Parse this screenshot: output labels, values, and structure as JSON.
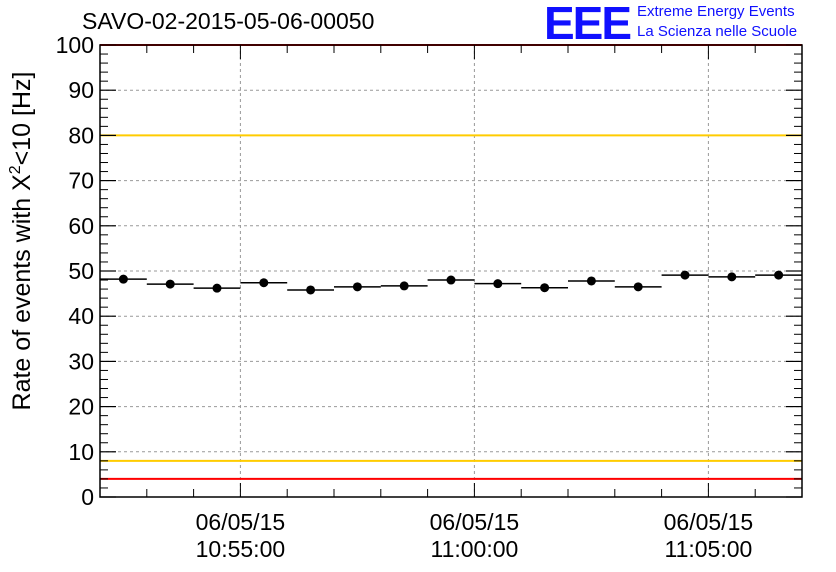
{
  "chart_data": {
    "type": "scatter",
    "title": "SAVO-02-2015-05-06-00050",
    "xlabel": "",
    "ylabel_prefix": "Rate of events with X",
    "ylabel_sup": "2",
    "ylabel_suffix": "<10 [Hz]",
    "ylim": [
      0,
      100
    ],
    "yticks": [
      "0",
      "10",
      "20",
      "30",
      "40",
      "50",
      "60",
      "70",
      "80",
      "90",
      "100"
    ],
    "xlim_minutes": [
      -3.0,
      12.0
    ],
    "xticks": [
      {
        "minute": 0,
        "date": "06/05/15",
        "time": "10:55:00"
      },
      {
        "minute": 5,
        "date": "06/05/15",
        "time": "11:00:00"
      },
      {
        "minute": 10,
        "date": "06/05/15",
        "time": "11:05:00"
      }
    ],
    "grid": true,
    "bin_width_minutes": 1.0,
    "x_minutes": [
      -2.5,
      -1.5,
      -0.5,
      0.5,
      1.5,
      2.5,
      3.5,
      4.5,
      5.5,
      6.5,
      7.5,
      8.5,
      9.5,
      10.5,
      11.5
    ],
    "values": [
      48.2,
      47.1,
      46.2,
      47.4,
      45.8,
      46.5,
      46.7,
      48.0,
      47.2,
      46.3,
      47.8,
      46.5,
      49.1,
      48.7,
      49.1
    ],
    "reference_lines": [
      {
        "value": 100,
        "color": "#ff0000"
      },
      {
        "value": 80,
        "color": "#ffcc00"
      },
      {
        "value": 8,
        "color": "#ffcc00"
      },
      {
        "value": 4,
        "color": "#ff0000"
      }
    ]
  },
  "logo": {
    "mark": "EEE",
    "line1": "Extreme Energy Events",
    "line2": "La Scienza nelle Scuole",
    "color": "#1010ff"
  }
}
